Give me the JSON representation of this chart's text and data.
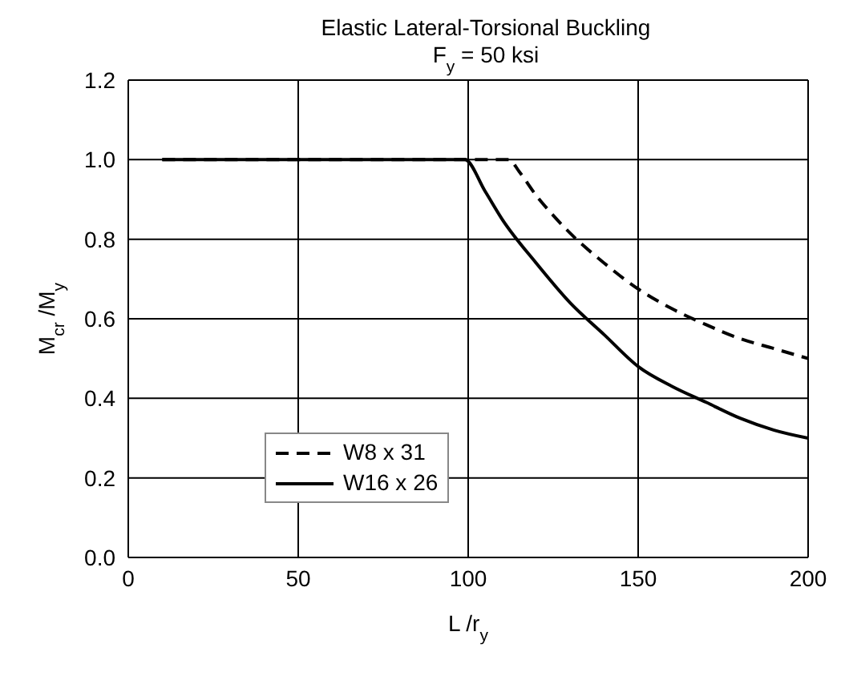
{
  "chart_data": {
    "type": "line",
    "title": "Elastic Lateral-Torsional Buckling",
    "subtitle": "F$_{y}$ = 50 ksi",
    "xlabel": "L /r$_{y}$",
    "ylabel": "M$_{cr}$ /M$_{y}$",
    "xlim": [
      0,
      200
    ],
    "xticks": [
      0,
      50,
      100,
      150,
      200
    ],
    "ylim": [
      0,
      1.2
    ],
    "yticks": [
      {
        "value": 0,
        "label": "0.0"
      },
      {
        "value": 0.2,
        "label": "0.2"
      },
      {
        "value": 0.4,
        "label": "0.4"
      },
      {
        "value": 0.6,
        "label": "0.6"
      },
      {
        "value": 0.8,
        "label": "0.8"
      },
      {
        "value": 1,
        "label": "1.0"
      },
      {
        "value": 1.2,
        "label": "1.2"
      }
    ],
    "grid": true,
    "legend": "bottom left",
    "marker": "none",
    "series": [
      {
        "name": "W8 x 31",
        "color": "#000000",
        "line_style": "dashed",
        "x": [
          10,
          112,
          115,
          120,
          125,
          130,
          140,
          150,
          160,
          170,
          180,
          190,
          200
        ],
        "values": [
          1,
          1,
          0.97,
          0.91,
          0.86,
          0.815,
          0.74,
          0.675,
          0.625,
          0.585,
          0.55,
          0.525,
          0.5
        ]
      },
      {
        "name": "W16 x 26",
        "color": "#000000",
        "line_style": "solid",
        "x": [
          10,
          99,
          105,
          110,
          120,
          130,
          140,
          150,
          160,
          170,
          180,
          190,
          200
        ],
        "values": [
          1,
          1,
          0.92,
          0.85,
          0.74,
          0.64,
          0.56,
          0.48,
          0.43,
          0.39,
          0.35,
          0.32,
          0.3
        ]
      }
    ]
  }
}
